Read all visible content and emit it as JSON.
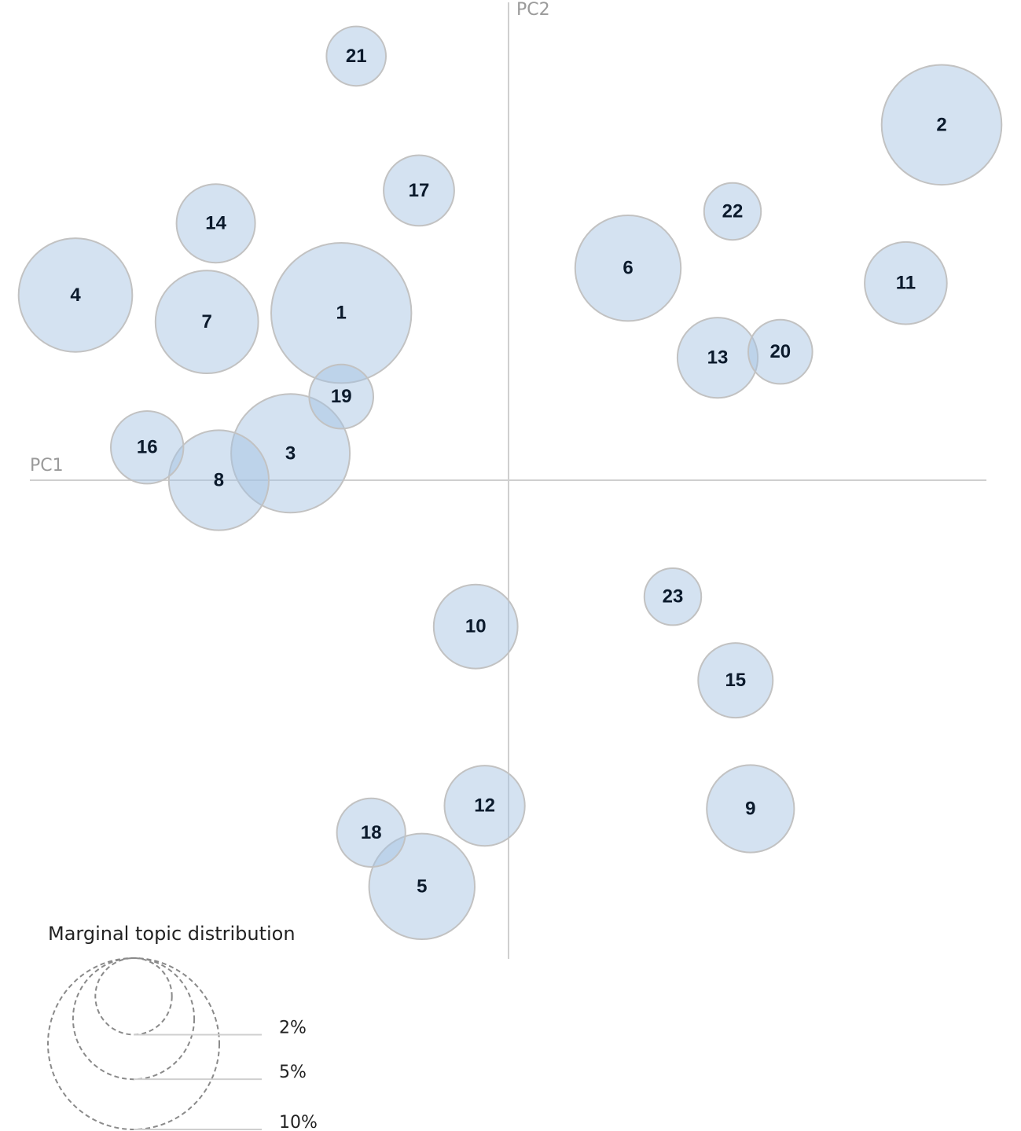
{
  "chart_data": {
    "type": "scatter",
    "subtype": "bubble",
    "xlabel": "PC1",
    "ylabel": "PC2",
    "grid": false,
    "points": [
      {
        "label": "1",
        "x": -0.56,
        "y": 0.56,
        "share": 6.7
      },
      {
        "label": "2",
        "x": 1.45,
        "y": 1.19,
        "share": 4.9
      },
      {
        "label": "3",
        "x": -0.73,
        "y": 0.09,
        "share": 4.8
      },
      {
        "label": "4",
        "x": -1.45,
        "y": 0.62,
        "share": 4.4
      },
      {
        "label": "5",
        "x": -0.29,
        "y": -1.36,
        "share": 3.8
      },
      {
        "label": "6",
        "x": 0.4,
        "y": 0.71,
        "share": 3.8
      },
      {
        "label": "7",
        "x": -1.01,
        "y": 0.53,
        "share": 3.6
      },
      {
        "label": "8",
        "x": -0.97,
        "y": 0.0,
        "share": 3.4
      },
      {
        "label": "9",
        "x": 0.81,
        "y": -1.1,
        "share": 2.6
      },
      {
        "label": "10",
        "x": -0.11,
        "y": -0.49,
        "share": 2.4
      },
      {
        "label": "11",
        "x": 1.33,
        "y": 0.66,
        "share": 2.3
      },
      {
        "label": "12",
        "x": -0.08,
        "y": -1.09,
        "share": 2.2
      },
      {
        "label": "13",
        "x": 0.7,
        "y": 0.41,
        "share": 2.2
      },
      {
        "label": "14",
        "x": -0.98,
        "y": 0.86,
        "share": 2.1
      },
      {
        "label": "15",
        "x": 0.76,
        "y": -0.67,
        "share": 1.9
      },
      {
        "label": "16",
        "x": -1.21,
        "y": 0.11,
        "share": 1.8
      },
      {
        "label": "17",
        "x": -0.3,
        "y": 0.97,
        "share": 1.7
      },
      {
        "label": "18",
        "x": -0.46,
        "y": -1.18,
        "share": 1.6
      },
      {
        "label": "19",
        "x": -0.56,
        "y": 0.28,
        "share": 1.4
      },
      {
        "label": "20",
        "x": 0.91,
        "y": 0.43,
        "share": 1.4
      },
      {
        "label": "21",
        "x": -0.51,
        "y": 1.42,
        "share": 1.2
      },
      {
        "label": "22",
        "x": 0.75,
        "y": 0.9,
        "share": 1.1
      },
      {
        "label": "23",
        "x": 0.55,
        "y": -0.39,
        "share": 1.1
      }
    ],
    "legend": {
      "title": "Marginal topic distribution",
      "placement": "bottom-left",
      "sizes": [
        {
          "label": "2%",
          "share": 2
        },
        {
          "label": "5%",
          "share": 5
        },
        {
          "label": "10%",
          "share": 10
        }
      ]
    }
  }
}
